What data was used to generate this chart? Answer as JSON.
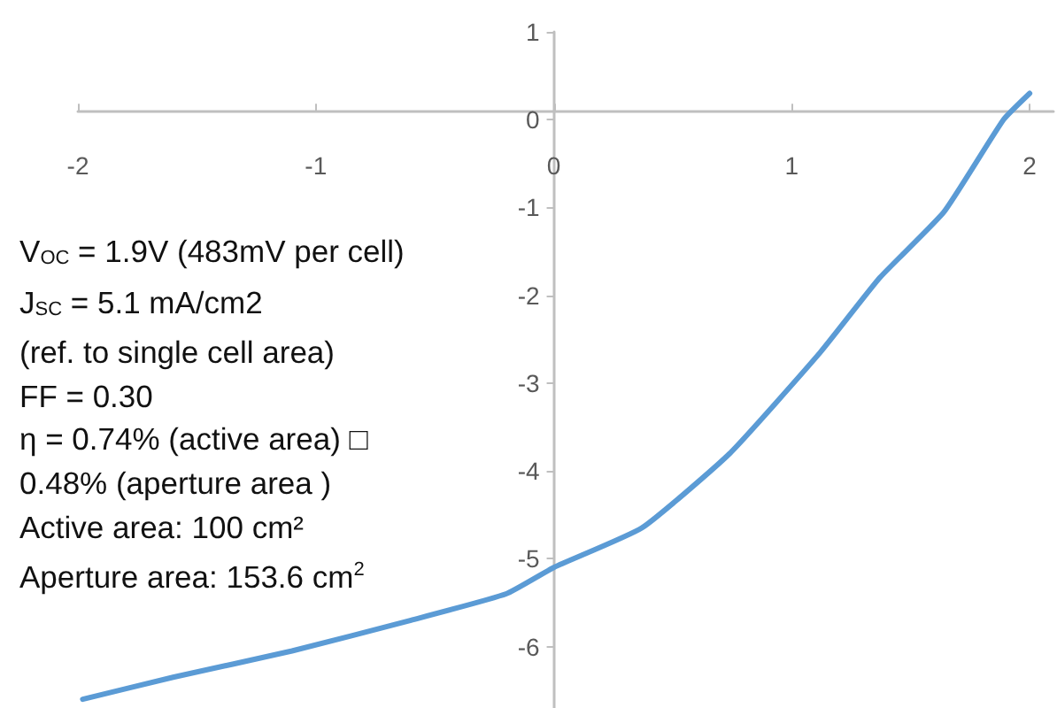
{
  "chart_data": {
    "type": "line",
    "x": [
      -1.98,
      -1.6,
      -1.1,
      -0.6,
      -0.2,
      0,
      0.37,
      0.74,
      1.12,
      1.37,
      1.64,
      1.89,
      2.0
    ],
    "series": [
      {
        "color": "#5b9bd5",
        "values": [
          -6.6,
          -6.35,
          -6.05,
          -5.7,
          -5.4,
          -5.1,
          -4.65,
          -3.8,
          -2.65,
          -1.8,
          -1.05,
          0,
          0.3
        ]
      }
    ],
    "xlim": [
      -2,
      2.1
    ],
    "xticks": [
      -2,
      -1,
      0,
      1,
      2
    ],
    "ylim": [
      -6.7,
      1
    ],
    "yticks": [
      -6,
      -5,
      -4,
      -3,
      -2,
      -1,
      0,
      1
    ],
    "marker": "none",
    "line_style": "solid",
    "annotations": [
      "V$_{OC}$ = 1.9V (483mV per cell)",
      "J$_{SC}$ = 5.1 mA/cm2",
      "(ref. to single cell area)",
      "FF = 0.30",
      "η = 0.74% (active area) □",
      "0.48% (aperture area )",
      "Active area: 100 cm²",
      "Aperture area: 153.6 cm$^{2}$"
    ]
  }
}
